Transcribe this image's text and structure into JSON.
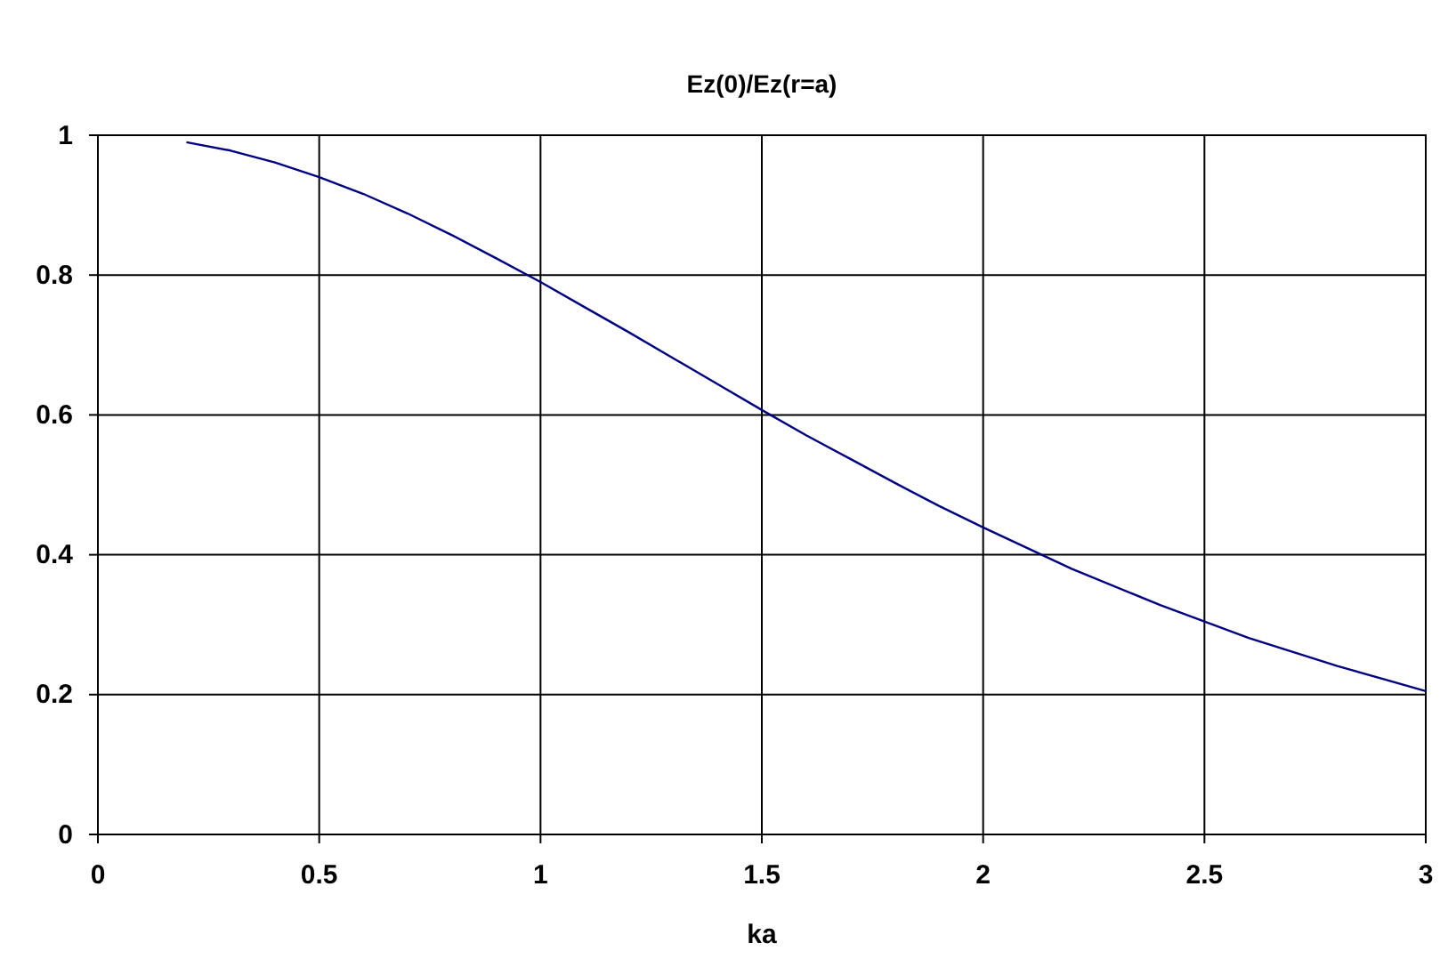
{
  "chart_data": {
    "type": "line",
    "title": "Ez(0)/Ez(r=a)",
    "xlabel": "ka",
    "x": [
      0.2,
      0.3,
      0.4,
      0.5,
      0.6,
      0.7,
      0.8,
      0.9,
      1.0,
      1.1,
      1.2,
      1.3,
      1.4,
      1.5,
      1.6,
      1.7,
      1.8,
      1.9,
      2.0,
      2.2,
      2.4,
      2.6,
      2.8,
      3.0
    ],
    "series": [
      {
        "color": "#000080",
        "values": [
          0.99,
          0.978,
          0.961,
          0.94,
          0.916,
          0.888,
          0.857,
          0.824,
          0.79,
          0.754,
          0.718,
          0.681,
          0.644,
          0.607,
          0.571,
          0.537,
          0.503,
          0.47,
          0.439,
          0.38,
          0.328,
          0.281,
          0.241,
          0.205
        ]
      }
    ],
    "xlim": [
      0,
      3
    ],
    "xticks": [
      0,
      0.5,
      1,
      1.5,
      2,
      2.5,
      3
    ],
    "ylim": [
      0,
      1
    ],
    "yticks": [
      0,
      0.2,
      0.4,
      0.6,
      0.8,
      1
    ],
    "grid": true,
    "marker": "none",
    "line_style": "solid"
  }
}
